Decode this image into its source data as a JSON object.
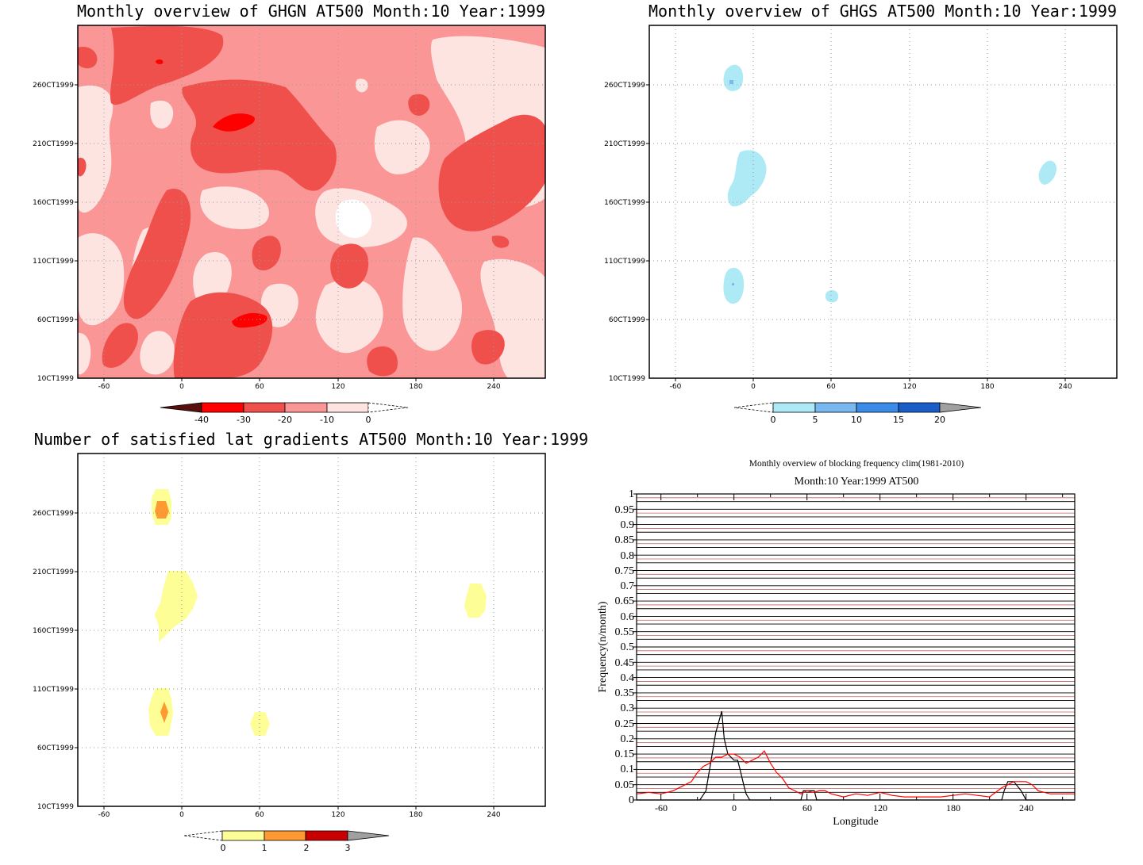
{
  "chart_data": [
    {
      "type": "heatmap",
      "title": "Monthly overview of GHGN AT500 Month:10 Year:1999",
      "xlabel": "",
      "ylabel": "",
      "x_ticks": [
        "-60",
        "0",
        "60",
        "120",
        "180",
        "240"
      ],
      "y_ticks": [
        "10CT1999",
        "60CT1999",
        "110CT1999",
        "160CT1999",
        "210CT1999",
        "260CT1999"
      ],
      "colorbar": {
        "labels": [
          "-40",
          "-30",
          "-20",
          "-10",
          "0"
        ],
        "colors": [
          "#5a0f0f",
          "#ff0000",
          "#f0504c",
          "#fa9696",
          "#fde4e1"
        ]
      }
    },
    {
      "type": "heatmap",
      "title": "Monthly overview of GHGS AT500 Month:10 Year:1999",
      "xlabel": "",
      "ylabel": "",
      "x_ticks": [
        "-60",
        "0",
        "60",
        "120",
        "180",
        "240"
      ],
      "y_ticks": [
        "10CT1999",
        "60CT1999",
        "110CT1999",
        "160CT1999",
        "210CT1999",
        "260CT1999"
      ],
      "colorbar": {
        "labels": [
          "0",
          "5",
          "10",
          "15",
          "20"
        ],
        "colors": [
          "#ffffff",
          "#aeeaf6",
          "#7ab8f0",
          "#3a8ce8",
          "#1a5cc8",
          "#a0a0a0"
        ]
      }
    },
    {
      "type": "heatmap",
      "title": "Number of satisfied lat gradients AT500 Month:10 Year:1999",
      "xlabel": "",
      "ylabel": "",
      "x_ticks": [
        "-60",
        "0",
        "60",
        "120",
        "180",
        "240"
      ],
      "y_ticks": [
        "10CT1999",
        "60CT1999",
        "110CT1999",
        "160CT1999",
        "210CT1999",
        "260CT1999"
      ],
      "colorbar": {
        "labels": [
          "0",
          "1",
          "2",
          "3"
        ],
        "colors": [
          "#ffffff",
          "#fefe96",
          "#ff9a32",
          "#c80000",
          "#a0a0a0"
        ]
      }
    },
    {
      "type": "line",
      "title": "Monthly overview of blocking frequency clim(1981-2010)",
      "subtitle": "Month:10 Year:1999  AT500",
      "xlabel": "Longitude",
      "ylabel": "Frequency(n/month)",
      "xlim": [
        -80,
        280
      ],
      "ylim": [
        0,
        1
      ],
      "x_ticks": [
        "-60",
        "0",
        "60",
        "120",
        "180",
        "240"
      ],
      "y_ticks": [
        "0",
        "0.05",
        "0.1",
        "0.15",
        "0.2",
        "0.25",
        "0.3",
        "0.35",
        "0.4",
        "0.45",
        "0.5",
        "0.55",
        "0.6",
        "0.65",
        "0.7",
        "0.75",
        "0.8",
        "0.85",
        "0.9",
        "0.95",
        "1"
      ],
      "series": [
        {
          "color": "#000000",
          "x": [
            -80,
            -28,
            -23,
            -20,
            -15,
            -10,
            -8,
            -5,
            0,
            3,
            5,
            8,
            10,
            13,
            18,
            55,
            57,
            62,
            66,
            68,
            220,
            222,
            225,
            230,
            236,
            240,
            280
          ],
          "values": [
            0,
            0,
            0.03,
            0.1,
            0.22,
            0.29,
            0.2,
            0.15,
            0.13,
            0.13,
            0.1,
            0.05,
            0.02,
            0,
            0,
            0,
            0.03,
            0.03,
            0.03,
            0,
            0,
            0.03,
            0.06,
            0.06,
            0.03,
            0,
            0
          ]
        },
        {
          "color": "#ff0000",
          "x": [
            -80,
            -70,
            -60,
            -50,
            -40,
            -35,
            -30,
            -25,
            -20,
            -15,
            -10,
            -5,
            0,
            5,
            10,
            15,
            20,
            25,
            30,
            35,
            40,
            45,
            50,
            55,
            60,
            65,
            70,
            75,
            80,
            90,
            100,
            110,
            120,
            130,
            140,
            150,
            160,
            170,
            180,
            190,
            200,
            210,
            220,
            225,
            230,
            235,
            240,
            245,
            250,
            260,
            270,
            280
          ],
          "values": [
            0.02,
            0.025,
            0.02,
            0.03,
            0.05,
            0.06,
            0.09,
            0.11,
            0.12,
            0.14,
            0.14,
            0.15,
            0.15,
            0.14,
            0.12,
            0.13,
            0.14,
            0.16,
            0.12,
            0.09,
            0.07,
            0.04,
            0.03,
            0.02,
            0.03,
            0.025,
            0.03,
            0.03,
            0.02,
            0.01,
            0.02,
            0.015,
            0.025,
            0.015,
            0.01,
            0.01,
            0.01,
            0.01,
            0.015,
            0.02,
            0.015,
            0.01,
            0.04,
            0.05,
            0.06,
            0.06,
            0.06,
            0.05,
            0.03,
            0.02,
            0.02,
            0.02
          ]
        }
      ]
    }
  ]
}
